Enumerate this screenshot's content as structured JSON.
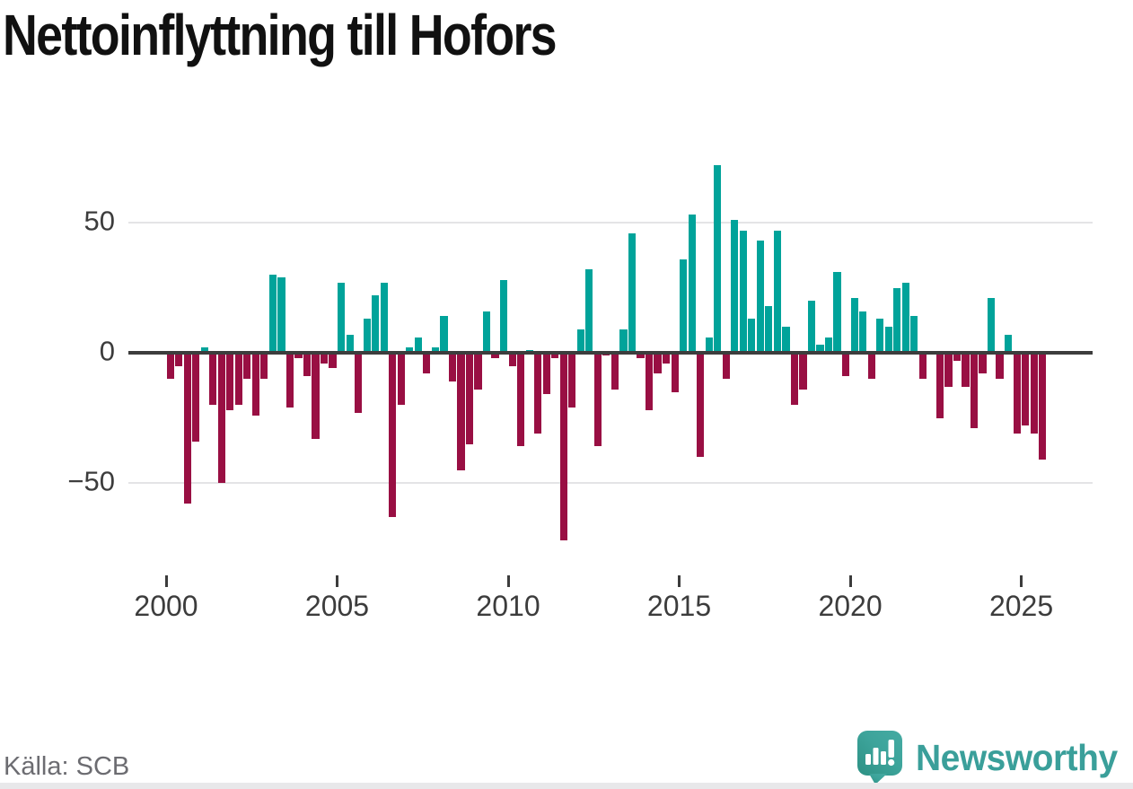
{
  "title": "Nettoinflyttning till Hofors",
  "source": "Källa: SCB",
  "logo": {
    "text": "Newsworthy"
  },
  "colors": {
    "positive": "#00a39a",
    "negative": "#990f43",
    "axis_line": "#3d3d3d",
    "grid": "#e4e4e6",
    "title_text": "#111111",
    "tick_text": "#3c3c3c",
    "source_text": "#6c6c71",
    "logo_teal": "#3a9f9a"
  },
  "chart_data": {
    "type": "bar",
    "title": "Nettoinflyttning till Hofors",
    "xlabel": "",
    "ylabel": "",
    "x_unit": "quarter",
    "grid": "horizontal",
    "legend": "none",
    "ylim": [
      -75,
      80
    ],
    "yticks": [
      50,
      -50
    ],
    "ytick_labels": [
      "50",
      "−50"
    ],
    "zero_label": "0",
    "xticks": [
      2000,
      2005,
      2010,
      2015,
      2020,
      2025
    ],
    "xtick_labels": [
      "2000",
      "2005",
      "2010",
      "2015",
      "2020",
      "2025"
    ],
    "categories": [
      "2000 Q1",
      "2000 Q2",
      "2000 Q3",
      "2000 Q4",
      "2001 Q1",
      "2001 Q2",
      "2001 Q3",
      "2001 Q4",
      "2002 Q1",
      "2002 Q2",
      "2002 Q3",
      "2002 Q4",
      "2003 Q1",
      "2003 Q2",
      "2003 Q3",
      "2003 Q4",
      "2004 Q1",
      "2004 Q2",
      "2004 Q3",
      "2004 Q4",
      "2005 Q1",
      "2005 Q2",
      "2005 Q3",
      "2005 Q4",
      "2006 Q1",
      "2006 Q2",
      "2006 Q3",
      "2006 Q4",
      "2007 Q1",
      "2007 Q2",
      "2007 Q3",
      "2007 Q4",
      "2008 Q1",
      "2008 Q2",
      "2008 Q3",
      "2008 Q4",
      "2009 Q1",
      "2009 Q2",
      "2009 Q3",
      "2009 Q4",
      "2010 Q1",
      "2010 Q2",
      "2010 Q3",
      "2010 Q4",
      "2011 Q1",
      "2011 Q2",
      "2011 Q3",
      "2011 Q4",
      "2012 Q1",
      "2012 Q2",
      "2012 Q3",
      "2012 Q4",
      "2013 Q1",
      "2013 Q2",
      "2013 Q3",
      "2013 Q4",
      "2014 Q1",
      "2014 Q2",
      "2014 Q3",
      "2014 Q4",
      "2015 Q1",
      "2015 Q2",
      "2015 Q3",
      "2015 Q4",
      "2016 Q1",
      "2016 Q2",
      "2016 Q3",
      "2016 Q4",
      "2017 Q1",
      "2017 Q2",
      "2017 Q3",
      "2017 Q4",
      "2018 Q1",
      "2018 Q2",
      "2018 Q3",
      "2018 Q4",
      "2019 Q1",
      "2019 Q2",
      "2019 Q3",
      "2019 Q4",
      "2020 Q1",
      "2020 Q2",
      "2020 Q3",
      "2020 Q4",
      "2021 Q1",
      "2021 Q2",
      "2021 Q3",
      "2021 Q4",
      "2022 Q1",
      "2022 Q2",
      "2022 Q3",
      "2022 Q4",
      "2023 Q1",
      "2023 Q2",
      "2023 Q3",
      "2023 Q4",
      "2024 Q1",
      "2024 Q2",
      "2024 Q3",
      "2024 Q4",
      "2025 Q1",
      "2025 Q2",
      "2025 Q3"
    ],
    "values": [
      -10,
      -5,
      -58,
      -34,
      2,
      -20,
      -50,
      -22,
      -20,
      -10,
      -24,
      -10,
      30,
      29,
      -21,
      -2,
      -9,
      -33,
      -4,
      -6,
      27,
      7,
      -23,
      13,
      22,
      27,
      -63,
      -20,
      2,
      6,
      -8,
      2,
      14,
      -11,
      -45,
      -35,
      -14,
      16,
      -2,
      28,
      -5,
      -36,
      1,
      -31,
      -16,
      -2,
      -72,
      -21,
      9,
      32,
      -36,
      -1,
      -14,
      9,
      46,
      -2,
      -22,
      -8,
      -4,
      -15,
      36,
      53,
      -40,
      6,
      72,
      -10,
      51,
      47,
      13,
      43,
      18,
      47,
      10,
      -20,
      -14,
      20,
      3,
      6,
      31,
      -9,
      21,
      16,
      -10,
      13,
      10,
      25,
      27,
      14,
      -10,
      0,
      -25,
      -13,
      -3,
      -13,
      -29,
      -8,
      21,
      -10,
      7,
      -31,
      -28,
      -31,
      -41
    ]
  }
}
